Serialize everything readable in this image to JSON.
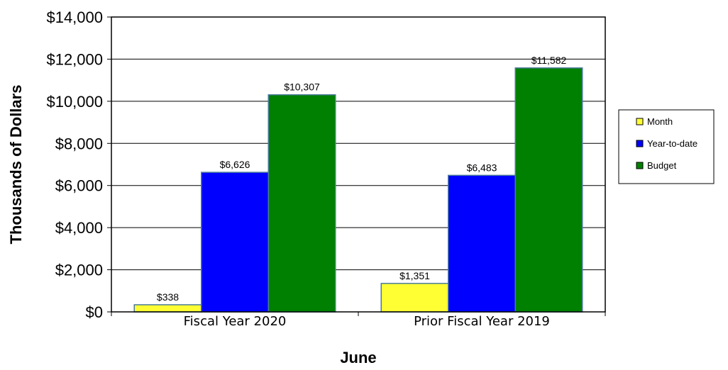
{
  "chart_data": {
    "type": "bar",
    "title": "",
    "xlabel": "June",
    "ylabel": "Thousands of Dollars",
    "categories": [
      "Fiscal Year 2020",
      "Prior Fiscal Year 2019"
    ],
    "series": [
      {
        "name": "Month",
        "color": "#ffff33",
        "values": [
          338,
          1351
        ],
        "labels": [
          "$338",
          "$1,351"
        ]
      },
      {
        "name": "Year-to-date",
        "color": "#0000ff",
        "values": [
          6626,
          6483
        ],
        "labels": [
          "$6,626",
          "$6,483"
        ]
      },
      {
        "name": "Budget",
        "color": "#008000",
        "values": [
          10307,
          11582
        ],
        "labels": [
          "$10,307",
          "$11,582"
        ]
      }
    ],
    "ylim": [
      0,
      14000
    ],
    "yticks": [
      0,
      2000,
      4000,
      6000,
      8000,
      10000,
      12000,
      14000
    ],
    "ytick_labels": [
      "$0",
      "$2,000",
      "$4,000",
      "$6,000",
      "$8,000",
      "$10,000",
      "$12,000",
      "$14,000"
    ],
    "grid": true,
    "legend_position": "right"
  }
}
